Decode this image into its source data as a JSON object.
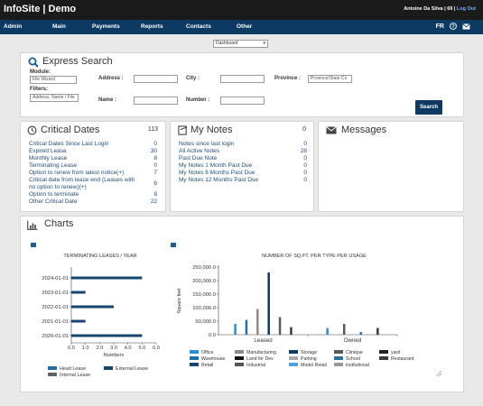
{
  "app": {
    "title": "InfoSite | Demo",
    "user": "Antoine Da Silva | 69 | ",
    "logout": "Log Out"
  },
  "nav": {
    "items": [
      "Admin",
      "Main",
      "Payments",
      "Reports",
      "Contacts",
      "Other"
    ],
    "lang": "FR"
  },
  "dashboard_select": "Dashboard",
  "express_search": {
    "title": "Express Search",
    "module_label": "Module:",
    "module_value": "File Wizard",
    "filters_label": "Filters:",
    "filters_placeholder": "Address, Name / File",
    "address_label": "Address :",
    "city_label": "City :",
    "province_label": "Province :",
    "province_placeholder": "Province/State Co",
    "name_label": "Name :",
    "number_label": "Number :",
    "search_button": "Search"
  },
  "critical_dates": {
    "title": "Critical Dates",
    "count": "113",
    "rows": [
      {
        "label": "Critical Dates Since Last Login",
        "value": "0"
      },
      {
        "label": "Expired Lease",
        "value": "30"
      },
      {
        "label": "Monthly Lease",
        "value": "8"
      },
      {
        "label": "Terminating Lease",
        "value": "0"
      },
      {
        "label": "Option to renew from latest notice(+)",
        "value": "7"
      },
      {
        "label": "Critical date from lease end (Leases with",
        "label2": "no option to renew)(+)",
        "value": "6"
      },
      {
        "label": "Option to terminate",
        "value": "8"
      },
      {
        "label": "Other Critical Date",
        "value": "22"
      }
    ]
  },
  "my_notes": {
    "title": "My Notes",
    "count": "0",
    "rows": [
      {
        "label": "Notes since last login",
        "value": "0"
      },
      {
        "label": "All Active Notes",
        "value": "28"
      },
      {
        "label": "Past Due Note",
        "value": "0"
      },
      {
        "label": "My Notes 1 Month Past Due",
        "value": "0"
      },
      {
        "label": "My Notes 6 Months Past Due",
        "value": "0"
      },
      {
        "label": "My Notes 12 Months Past Due",
        "value": "0"
      }
    ]
  },
  "messages": {
    "title": "Messages"
  },
  "charts_section": {
    "title": "Charts"
  },
  "colors": {
    "navy": "#0c3a63",
    "topbar": "#1b1b1b",
    "link": "#1f4e79",
    "bar_blue": "#1f6fa8",
    "bar_navy": "#16456e",
    "bar_grey": "#606060"
  },
  "chart_data": [
    {
      "type": "bar",
      "orientation": "horizontal",
      "title": "TERMINATING LEASES / YEAR",
      "xlabel": "Numbers",
      "ylabel": "",
      "categories": [
        "2024-01-01",
        "2023-01-01",
        "2022-01-01",
        "2021-01-01",
        "2020-01-01"
      ],
      "xlim": [
        0,
        6
      ],
      "xticks": [
        "0.0",
        "1.0",
        "2.0",
        "3.0",
        "4.0",
        "5.0",
        "6.0"
      ],
      "series": [
        {
          "name": "Head Lease",
          "color": "#1f6fa8",
          "values": [
            0,
            0,
            0,
            0,
            0
          ]
        },
        {
          "name": "External Lease",
          "color": "#16456e",
          "values": [
            5,
            1,
            3,
            1,
            5
          ]
        },
        {
          "name": "Internal Lease",
          "color": "#606060",
          "values": [
            0,
            0,
            0,
            0,
            0
          ]
        }
      ],
      "legend": "bottom"
    },
    {
      "type": "bar",
      "title": "NUMBER OF SQ.FT. PER TYPE PER USAGE",
      "xlabel": "",
      "ylabel": "Square feet",
      "categories": [
        "Leased",
        "Owned"
      ],
      "ylim": [
        0,
        250000
      ],
      "yticks": [
        "0.0",
        "50,000.0",
        "100,000.0",
        "150,000.0",
        "200,000.0",
        "250,000.0"
      ],
      "series": [
        {
          "name": "Office",
          "color": "#2a8fd0",
          "values": [
            40000,
            25000
          ]
        },
        {
          "name": "Warehouse",
          "color": "#1f6fa8",
          "values": [
            55000,
            0
          ]
        },
        {
          "name": "Retail",
          "color": "#16456e",
          "values": [
            0,
            0
          ]
        },
        {
          "name": "Manufacturing",
          "color": "#8a8a8a",
          "values": [
            95000,
            0
          ]
        },
        {
          "name": "Land for Dev",
          "color": "#111111",
          "values": [
            0,
            0
          ]
        },
        {
          "name": "Industrial",
          "color": "#555555",
          "values": [
            0,
            0
          ]
        },
        {
          "name": "Storage",
          "color": "#0c3a63",
          "values": [
            230000,
            0
          ]
        },
        {
          "name": "Parking",
          "color": "#a7a7a7",
          "values": [
            0,
            0
          ]
        },
        {
          "name": "Model Retail",
          "color": "#4aa3df",
          "values": [
            0,
            0
          ]
        },
        {
          "name": "Clinique",
          "color": "#5a5a5a",
          "values": [
            65000,
            40000
          ]
        },
        {
          "name": "School",
          "color": "#2c6e9e",
          "values": [
            0,
            10000
          ]
        },
        {
          "name": "institutional",
          "color": "#9a9a9a",
          "values": [
            0,
            0
          ]
        },
        {
          "name": "yard",
          "color": "#222222",
          "values": [
            0,
            0
          ]
        },
        {
          "name": "Restaurant",
          "color": "#3a3a3a",
          "values": [
            28000,
            25000
          ]
        }
      ],
      "legend": "bottom"
    }
  ]
}
